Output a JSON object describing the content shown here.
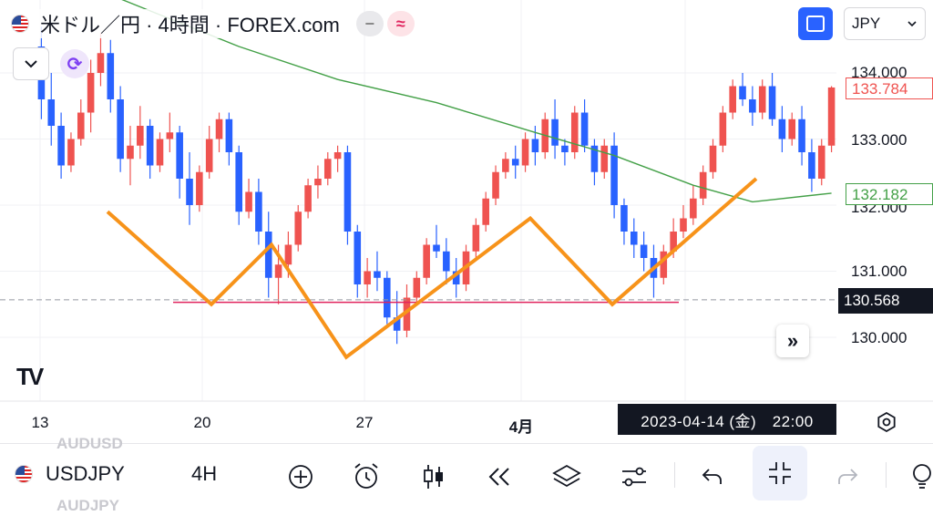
{
  "header": {
    "title": "米ドル／円 · 4時間 · FOREX.com",
    "currency": "JPY",
    "indicator_grey": "−",
    "indicator_pink": "≈"
  },
  "price_scale": {
    "ticks": [
      "134.000",
      "133.000",
      "132.000",
      "131.000",
      "130.000"
    ],
    "last_price": "133.784",
    "ma_price": "132.182",
    "crosshair_price": "130.568"
  },
  "time_scale": {
    "ticks": [
      "13",
      "20",
      "27",
      "4月"
    ],
    "crosshair_time": "2023-04-14 (金)　22:00"
  },
  "bottom_bar": {
    "symbol": "USDJPY",
    "timeframe": "4H",
    "ghost_symbol_above": "AUDUSD",
    "ghost_symbol_below": "AUDJPY"
  },
  "colors": {
    "up": "#ef5350",
    "down": "#2962ff",
    "ma": "#43a047",
    "pattern": "#f7931a",
    "neckline": "#e0245e",
    "accent": "#2962ff"
  },
  "chart_data": {
    "type": "candlestick",
    "symbol": "USDJPY",
    "interval": "4H",
    "ylim": [
      129.4,
      134.7
    ],
    "y_ticks": [
      130.0,
      131.0,
      132.0,
      133.0,
      134.0
    ],
    "x_ticks": [
      "13",
      "20",
      "27",
      "4月"
    ],
    "candles": [
      [
        134.4,
        134.7,
        133.3,
        133.6
      ],
      [
        133.6,
        134.0,
        132.9,
        133.2
      ],
      [
        133.2,
        133.4,
        132.4,
        132.6
      ],
      [
        132.6,
        133.1,
        132.5,
        133.0
      ],
      [
        133.0,
        133.6,
        132.9,
        133.4
      ],
      [
        133.4,
        134.2,
        133.1,
        134.0
      ],
      [
        134.0,
        134.6,
        133.8,
        134.3
      ],
      [
        134.3,
        134.5,
        133.4,
        133.6
      ],
      [
        133.6,
        133.8,
        132.5,
        132.7
      ],
      [
        132.7,
        133.2,
        132.3,
        132.9
      ],
      [
        132.9,
        133.5,
        132.7,
        133.2
      ],
      [
        133.2,
        133.3,
        132.4,
        132.6
      ],
      [
        132.6,
        133.1,
        132.5,
        133.0
      ],
      [
        133.0,
        133.4,
        132.8,
        133.1
      ],
      [
        133.1,
        133.2,
        132.1,
        132.4
      ],
      [
        132.4,
        132.8,
        131.7,
        132.0
      ],
      [
        132.0,
        132.6,
        131.9,
        132.5
      ],
      [
        132.5,
        133.2,
        132.4,
        133.0
      ],
      [
        133.0,
        133.4,
        132.8,
        133.3
      ],
      [
        133.3,
        133.4,
        132.6,
        132.8
      ],
      [
        132.8,
        132.9,
        131.7,
        131.9
      ],
      [
        131.9,
        132.4,
        131.8,
        132.2
      ],
      [
        132.2,
        132.4,
        131.4,
        131.6
      ],
      [
        131.6,
        131.9,
        130.6,
        130.9
      ],
      [
        130.9,
        131.4,
        130.5,
        131.1
      ],
      [
        131.1,
        131.6,
        130.9,
        131.4
      ],
      [
        131.4,
        132.0,
        131.3,
        131.9
      ],
      [
        131.9,
        132.4,
        131.8,
        132.3
      ],
      [
        132.3,
        132.6,
        132.1,
        132.4
      ],
      [
        132.4,
        132.8,
        132.3,
        132.7
      ],
      [
        132.7,
        132.9,
        132.5,
        132.8
      ],
      [
        132.8,
        132.9,
        131.4,
        131.6
      ],
      [
        131.6,
        131.7,
        130.6,
        130.8
      ],
      [
        130.8,
        131.2,
        130.6,
        131.0
      ],
      [
        131.0,
        131.3,
        130.7,
        130.9
      ],
      [
        130.9,
        131.0,
        130.2,
        130.3
      ],
      [
        130.3,
        130.7,
        129.9,
        130.1
      ],
      [
        130.1,
        130.8,
        130.0,
        130.6
      ],
      [
        130.6,
        131.0,
        130.5,
        130.9
      ],
      [
        130.9,
        131.5,
        130.8,
        131.4
      ],
      [
        131.4,
        131.7,
        131.2,
        131.3
      ],
      [
        131.3,
        131.5,
        130.8,
        131.0
      ],
      [
        131.0,
        131.2,
        130.6,
        130.8
      ],
      [
        130.8,
        131.4,
        130.7,
        131.3
      ],
      [
        131.3,
        131.8,
        131.2,
        131.7
      ],
      [
        131.7,
        132.2,
        131.6,
        132.1
      ],
      [
        132.1,
        132.6,
        132.0,
        132.5
      ],
      [
        132.5,
        132.8,
        132.4,
        132.7
      ],
      [
        132.7,
        132.9,
        132.4,
        132.6
      ],
      [
        132.6,
        133.1,
        132.5,
        133.0
      ],
      [
        133.0,
        133.2,
        132.6,
        132.8
      ],
      [
        132.8,
        133.4,
        132.7,
        133.3
      ],
      [
        133.3,
        133.6,
        132.7,
        132.9
      ],
      [
        132.9,
        133.0,
        132.6,
        132.8
      ],
      [
        132.8,
        133.5,
        132.7,
        133.4
      ],
      [
        133.4,
        133.6,
        132.8,
        132.9
      ],
      [
        132.9,
        133.0,
        132.3,
        132.5
      ],
      [
        132.5,
        133.0,
        132.4,
        132.9
      ],
      [
        132.9,
        133.1,
        131.8,
        132.0
      ],
      [
        132.0,
        132.1,
        131.4,
        131.6
      ],
      [
        131.6,
        131.8,
        131.2,
        131.4
      ],
      [
        131.4,
        131.6,
        131.0,
        131.2
      ],
      [
        131.2,
        131.4,
        130.6,
        130.9
      ],
      [
        130.9,
        131.4,
        130.8,
        131.3
      ],
      [
        131.3,
        131.8,
        131.2,
        131.6
      ],
      [
        131.6,
        132.0,
        131.5,
        131.8
      ],
      [
        131.8,
        132.3,
        131.7,
        132.1
      ],
      [
        132.1,
        132.6,
        132.0,
        132.5
      ],
      [
        132.5,
        133.0,
        132.4,
        132.9
      ],
      [
        132.9,
        133.5,
        132.8,
        133.4
      ],
      [
        133.4,
        133.9,
        133.3,
        133.8
      ],
      [
        133.8,
        134.0,
        133.5,
        133.6
      ],
      [
        133.6,
        133.8,
        133.2,
        133.4
      ],
      [
        133.4,
        133.9,
        133.3,
        133.8
      ],
      [
        133.8,
        134.0,
        133.2,
        133.3
      ],
      [
        133.3,
        133.5,
        132.8,
        133.0
      ],
      [
        133.0,
        133.4,
        132.9,
        133.3
      ],
      [
        133.3,
        133.5,
        132.6,
        132.8
      ],
      [
        132.8,
        133.0,
        132.2,
        132.4
      ],
      [
        132.4,
        133.0,
        132.3,
        132.9
      ],
      [
        132.9,
        133.8,
        132.8,
        133.78
      ]
    ],
    "moving_average": {
      "name": "",
      "values": [
        [
          0,
          135.6
        ],
        [
          10,
          135.0
        ],
        [
          20,
          134.4
        ],
        [
          30,
          133.9
        ],
        [
          40,
          133.55
        ],
        [
          50,
          133.1
        ],
        [
          58,
          132.75
        ],
        [
          66,
          132.3
        ],
        [
          72,
          132.05
        ],
        [
          80,
          132.18
        ]
      ]
    },
    "pattern_points": [
      [
        118,
        131.9
      ],
      [
        232,
        130.5
      ],
      [
        298,
        131.4
      ],
      [
        380,
        129.7
      ],
      [
        582,
        131.8
      ],
      [
        672,
        130.5
      ],
      [
        830,
        132.4
      ]
    ],
    "neckline": 130.53,
    "crosshair_price": 130.568,
    "last_price": 133.784
  }
}
